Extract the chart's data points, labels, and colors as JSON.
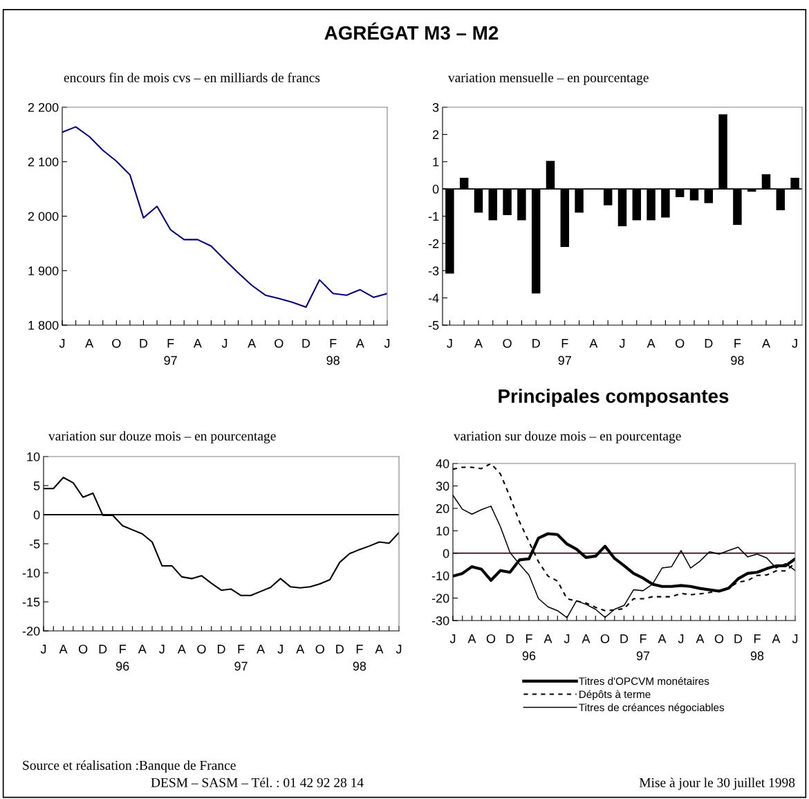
{
  "chart_data": [
    {
      "type": "line",
      "title": "AGRÉGAT M3 – M2",
      "subtitle": "encours fin de mois cvs – en milliards de francs",
      "categories": [
        "J",
        null,
        "A",
        null,
        "O",
        null,
        "D",
        null,
        "F\n97",
        null,
        "A",
        null,
        "J",
        null,
        "A",
        null,
        "O",
        null,
        "D",
        null,
        "F\n98",
        null,
        "A",
        null,
        "J"
      ],
      "series": [
        {
          "color": "#000080",
          "values": [
            2154,
            2164,
            2146,
            2121,
            2101,
            2076,
            1997,
            2018,
            1975,
            1957,
            1957,
            1945,
            1920,
            1896,
            1873,
            1855,
            1849,
            1842,
            1833,
            1883,
            1858,
            1855,
            1865,
            1851,
            1858
          ]
        }
      ],
      "ylim": [
        1800,
        2200
      ],
      "yticks": [
        {
          "value": 1800,
          "label": "1 800"
        },
        {
          "value": 1900,
          "label": "1 900"
        },
        {
          "value": 2000,
          "label": "2 000"
        },
        {
          "value": 2100,
          "label": "2 100"
        },
        {
          "value": 2200,
          "label": "2 200"
        }
      ],
      "grid": false,
      "legend": false
    },
    {
      "type": "bar",
      "subtitle": "variation mensuelle – en pourcentage",
      "categories": [
        "J",
        null,
        "A",
        null,
        "O",
        null,
        "D",
        null,
        "F\n97",
        null,
        "A",
        null,
        "J",
        null,
        "A",
        null,
        "O",
        null,
        "D",
        null,
        "F\n98",
        null,
        "A",
        null,
        "J"
      ],
      "series": [
        {
          "color": "#000000",
          "values": [
            -3.11,
            0.41,
            -0.87,
            -1.15,
            -0.96,
            -1.15,
            -3.84,
            1.03,
            -2.13,
            -0.87,
            null,
            -0.6,
            -1.37,
            -1.15,
            -1.15,
            -1.05,
            -0.3,
            -0.42,
            -0.52,
            2.74,
            -1.32,
            -0.1,
            0.54,
            -0.78,
            0.41
          ]
        }
      ],
      "ylim": [
        -5,
        3
      ],
      "yticks": [
        -5,
        -4,
        -3,
        -2,
        -1,
        0,
        1,
        2,
        3
      ],
      "ref_lines": [
        {
          "axis": "y",
          "value": 0,
          "color": "#000000"
        }
      ],
      "grid": false,
      "legend": false
    },
    {
      "type": "line",
      "subtitle": "variation sur douze mois – en pourcentage",
      "categories": [
        "J",
        null,
        "A",
        null,
        "O",
        null,
        "D",
        null,
        "F\n96",
        null,
        "A",
        null,
        "J",
        null,
        "A",
        null,
        "O",
        null,
        "D",
        null,
        "F\n97",
        null,
        "A",
        null,
        "J",
        null,
        "A",
        null,
        "O",
        null,
        "D",
        null,
        "F\n98",
        null,
        "A",
        null,
        "J"
      ],
      "series": [
        {
          "color": "#000000",
          "values": [
            4.5,
            4.5,
            6.4,
            5.5,
            3.0,
            3.7,
            -0.1,
            -0.1,
            -1.9,
            -2.6,
            -3.3,
            -4.7,
            -8.8,
            -8.8,
            -10.7,
            -11.0,
            -10.5,
            -11.8,
            -13.0,
            -12.8,
            -13.9,
            -13.9,
            -13.2,
            -12.5,
            -11.0,
            -12.4,
            -12.6,
            -12.4,
            -11.9,
            -11.2,
            -8.2,
            -6.7,
            -6.0,
            -5.4,
            -4.7,
            -4.9,
            -3.1
          ]
        }
      ],
      "ylim": [
        -20,
        10
      ],
      "yticks": [
        -20,
        -15,
        -10,
        -5,
        0,
        5,
        10
      ],
      "ref_lines": [
        {
          "axis": "y",
          "value": 0,
          "color": "#000000"
        }
      ],
      "annotations": [
        "Source et réalisation :Banque de France",
        "DESM – SASM – Tél. : 01 42 92 28 14",
        "Mise à jour le 30 juillet 1998"
      ],
      "grid": false,
      "legend": false
    },
    {
      "type": "line",
      "title": "Principales composantes",
      "subtitle": "variation sur douze mois – en pourcentage",
      "categories": [
        "J",
        null,
        "A",
        null,
        "O",
        null,
        "D",
        null,
        "F\n96",
        null,
        "A",
        null,
        "J",
        null,
        "A",
        null,
        "O",
        null,
        "D",
        null,
        "F\n97",
        null,
        "A",
        null,
        "J",
        null,
        "A",
        null,
        "O",
        null,
        "D",
        null,
        "F\n98",
        null,
        "A",
        null,
        "J"
      ],
      "series": [
        {
          "name": "Titres d'OPCVM monétaires",
          "color": "#000000",
          "line_style": "solid",
          "values": [
            -10.2,
            -9.0,
            -6.0,
            -7.1,
            -12.1,
            -7.7,
            -8.5,
            -3.0,
            -2.5,
            6.7,
            8.7,
            8.3,
            4.1,
            1.8,
            -1.9,
            -1.3,
            3.1,
            -2.3,
            -5.5,
            -9.0,
            -11.1,
            -13.8,
            -14.8,
            -14.8,
            -14.4,
            -14.8,
            -15.7,
            -16.3,
            -16.9,
            -15.6,
            -11.4,
            -9.0,
            -8.5,
            -6.9,
            -5.6,
            -5.6,
            -2.5
          ]
        },
        {
          "name": "Dépôts à terme",
          "color": "#000000",
          "line_style": "dashed",
          "values": [
            37.5,
            38.3,
            38.3,
            37.7,
            40.0,
            35.3,
            25.2,
            14.1,
            5.1,
            -3.8,
            -10.2,
            -12.4,
            -20.3,
            -21.3,
            -22.2,
            -24.1,
            -25.6,
            -25.3,
            -24.7,
            -20.3,
            -20.3,
            -19.4,
            -19.4,
            -19.4,
            -17.9,
            -18.5,
            -18.1,
            -17.5,
            -16.6,
            -15.5,
            -12.9,
            -12.2,
            -9.9,
            -9.7,
            -7.9,
            -7.9,
            -4.4
          ]
        },
        {
          "name": "Titres de créances négociables",
          "color": "#000000",
          "line_style": "solid",
          "values": [
            25.8,
            19.6,
            17.4,
            19.4,
            21.0,
            11.8,
            0.4,
            -4.9,
            -9.7,
            -20.2,
            -23.9,
            -25.6,
            -28.7,
            -21.2,
            -22.8,
            -25.0,
            -28.6,
            -25.0,
            -23.3,
            -16.3,
            -16.7,
            -13.8,
            -6.6,
            -6.0,
            1.2,
            -6.6,
            -3.5,
            0.7,
            -0.4,
            1.2,
            2.7,
            -1.6,
            -0.4,
            -2.1,
            -6.6,
            -4.6,
            -7.7
          ]
        }
      ],
      "ylim": [
        -30,
        40
      ],
      "yticks": [
        -30,
        -20,
        -10,
        0,
        10,
        20,
        30,
        40
      ],
      "ref_lines": [
        {
          "axis": "y",
          "value": 0,
          "color": "#2b0a1a"
        }
      ],
      "grid": false,
      "legend": "bottom"
    }
  ]
}
